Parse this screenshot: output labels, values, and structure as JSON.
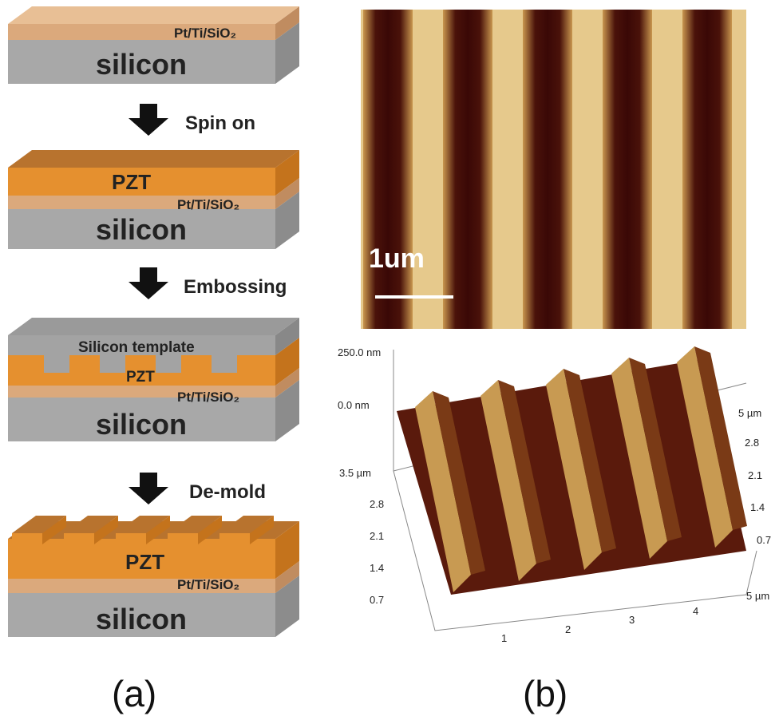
{
  "panel_a": {
    "label": "(a)",
    "steps": [
      {
        "layers": [
          "Pt/Ti/SiO₂",
          "silicon"
        ]
      },
      {
        "action": "Spin on",
        "layers": [
          "PZT",
          "Pt/Ti/SiO₂",
          "silicon"
        ]
      },
      {
        "action": "Embossing",
        "layers": [
          "Silicon template",
          "PZT",
          "Pt/Ti/SiO₂",
          "silicon"
        ]
      },
      {
        "action": "De-mold",
        "layers": [
          "PZT",
          "Pt/Ti/SiO₂",
          "silicon"
        ]
      }
    ]
  },
  "panel_b": {
    "label": "(b)",
    "afm_image": {
      "scale_bar": "1um"
    },
    "afm_3d": {
      "z_labels": [
        "250.0 nm",
        "0.0 nm"
      ],
      "y_labels_left": [
        "3.5 µm",
        "2.8",
        "2.1",
        "1.4",
        "0.7"
      ],
      "x_labels": [
        "1",
        "2",
        "3",
        "4",
        "5 µm"
      ],
      "y_labels_right": [
        "5 µm",
        "2.8",
        "2.1",
        "1.4",
        "0.7"
      ]
    }
  }
}
